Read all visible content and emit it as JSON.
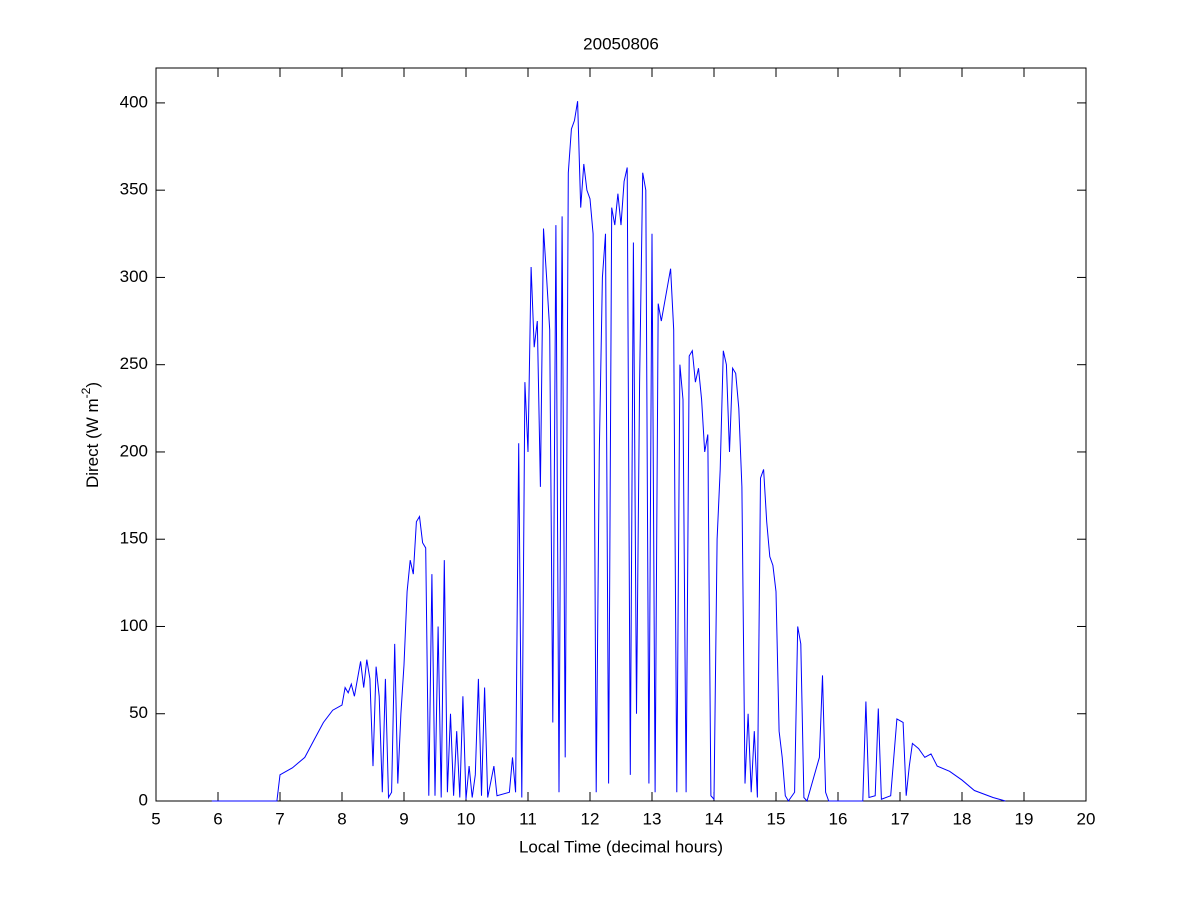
{
  "chart_data": {
    "type": "line",
    "title": "20050806",
    "x_label": "Local Time (decimal hours)",
    "y_label": {
      "text": "Direct (W m",
      "superscript": "-2",
      "suffix": ")"
    },
    "xlim": [
      5,
      20
    ],
    "xticks": [
      5,
      6,
      7,
      8,
      9,
      10,
      11,
      12,
      13,
      14,
      15,
      16,
      17,
      18,
      19,
      20
    ],
    "ylim": [
      0,
      420
    ],
    "yticks": [
      0,
      50,
      100,
      150,
      200,
      250,
      300,
      350,
      400
    ],
    "grid": false,
    "color": "#0000ff",
    "x": [
      5.9,
      6.95,
      7.0,
      7.2,
      7.4,
      7.55,
      7.7,
      7.85,
      8.0,
      8.05,
      8.1,
      8.15,
      8.2,
      8.3,
      8.35,
      8.4,
      8.45,
      8.5,
      8.55,
      8.6,
      8.65,
      8.7,
      8.75,
      8.8,
      8.85,
      8.9,
      8.95,
      9.0,
      9.05,
      9.1,
      9.15,
      9.2,
      9.25,
      9.3,
      9.35,
      9.4,
      9.45,
      9.5,
      9.55,
      9.6,
      9.65,
      9.7,
      9.75,
      9.8,
      9.85,
      9.9,
      9.95,
      10.0,
      10.05,
      10.1,
      10.15,
      10.2,
      10.25,
      10.3,
      10.35,
      10.45,
      10.5,
      10.7,
      10.75,
      10.8,
      10.85,
      10.9,
      10.95,
      11.0,
      11.05,
      11.1,
      11.15,
      11.2,
      11.25,
      11.3,
      11.35,
      11.4,
      11.45,
      11.5,
      11.55,
      11.6,
      11.65,
      11.7,
      11.75,
      11.8,
      11.85,
      11.9,
      11.95,
      12.0,
      12.05,
      12.1,
      12.15,
      12.2,
      12.25,
      12.3,
      12.35,
      12.4,
      12.45,
      12.5,
      12.55,
      12.6,
      12.65,
      12.7,
      12.75,
      12.8,
      12.85,
      12.9,
      12.95,
      13.0,
      13.05,
      13.1,
      13.15,
      13.25,
      13.3,
      13.35,
      13.4,
      13.45,
      13.5,
      13.55,
      13.6,
      13.65,
      13.7,
      13.75,
      13.8,
      13.85,
      13.9,
      13.95,
      14.0,
      14.05,
      14.1,
      14.15,
      14.2,
      14.25,
      14.3,
      14.35,
      14.4,
      14.45,
      14.5,
      14.55,
      14.6,
      14.65,
      14.7,
      14.75,
      14.8,
      14.85,
      14.9,
      14.95,
      15.0,
      15.05,
      15.1,
      15.15,
      15.2,
      15.3,
      15.35,
      15.4,
      15.45,
      15.5,
      15.7,
      15.75,
      15.8,
      15.85,
      16.4,
      16.45,
      16.5,
      16.6,
      16.65,
      16.7,
      16.85,
      16.95,
      17.05,
      17.1,
      17.15,
      17.2,
      17.3,
      17.4,
      17.5,
      17.6,
      17.8,
      18.0,
      18.2,
      18.5,
      18.7
    ],
    "values": [
      0,
      0,
      15,
      19,
      25,
      35,
      45,
      52,
      55,
      65,
      62,
      67,
      60,
      80,
      65,
      81,
      70,
      20,
      77,
      60,
      5,
      70,
      2,
      5,
      90,
      10,
      50,
      78,
      120,
      138,
      130,
      160,
      163,
      148,
      145,
      3,
      130,
      3,
      100,
      2,
      138,
      5,
      50,
      3,
      40,
      2,
      60,
      1,
      20,
      2,
      15,
      70,
      3,
      65,
      2,
      20,
      3,
      5,
      25,
      5,
      205,
      2,
      240,
      200,
      306,
      260,
      275,
      180,
      328,
      300,
      270,
      45,
      330,
      5,
      335,
      25,
      360,
      385,
      390,
      401,
      340,
      365,
      350,
      345,
      325,
      5,
      200,
      300,
      325,
      10,
      340,
      330,
      348,
      330,
      355,
      363,
      15,
      320,
      50,
      240,
      360,
      350,
      10,
      325,
      5,
      285,
      275,
      295,
      305,
      270,
      5,
      250,
      230,
      5,
      255,
      258,
      240,
      248,
      230,
      200,
      210,
      3,
      1,
      150,
      190,
      258,
      250,
      200,
      248,
      245,
      225,
      180,
      10,
      50,
      5,
      40,
      2,
      185,
      190,
      160,
      140,
      135,
      120,
      40,
      25,
      3,
      0,
      5,
      100,
      90,
      2,
      0,
      25,
      72,
      5,
      0,
      0,
      57,
      2,
      3,
      53,
      1,
      3,
      47,
      45,
      3,
      20,
      33,
      30,
      25,
      27,
      20,
      17,
      12,
      6,
      2,
      0
    ]
  }
}
